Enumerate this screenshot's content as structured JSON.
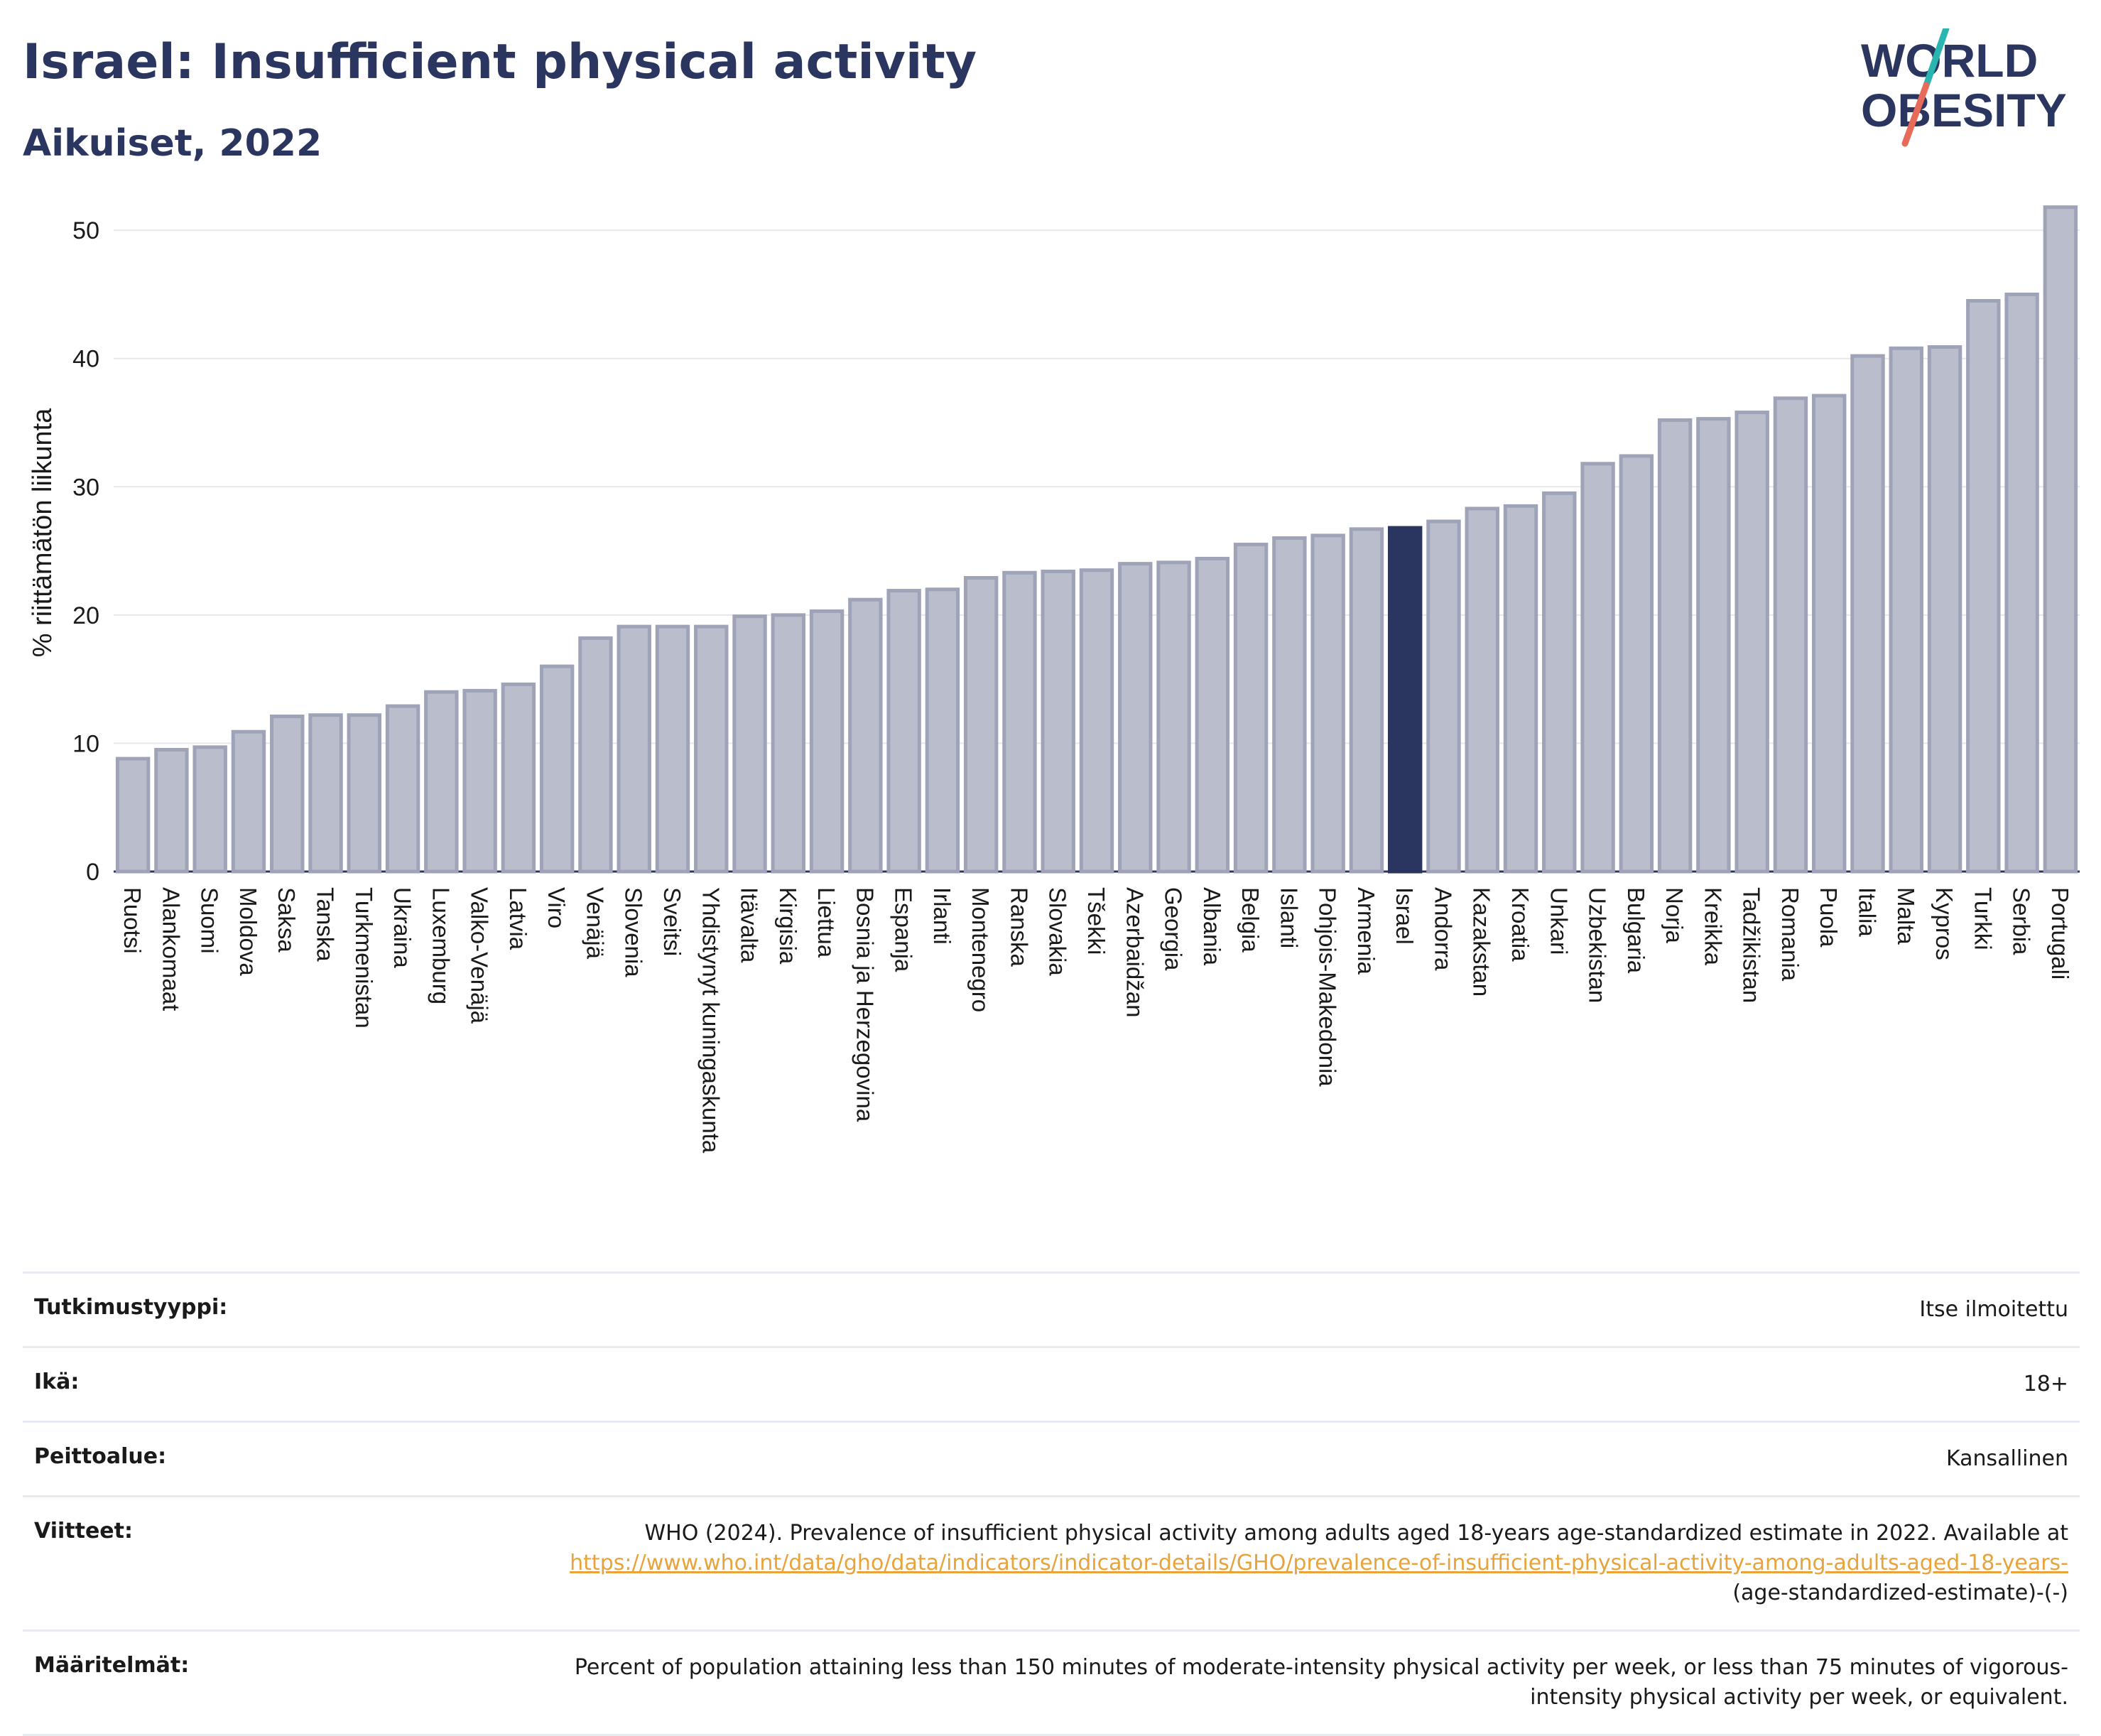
{
  "header": {
    "title": "Israel: Insufficient physical activity",
    "subtitle": "Aikuiset, 2022",
    "logo_line1": "WORLD",
    "logo_line2": "OBESITY"
  },
  "colors": {
    "bar": "#b9bdcc",
    "bar_stroke": "#9ea3b8",
    "highlight": "#2b3660",
    "grid": "#e6e8ee",
    "logo_text": "#2b3660",
    "logo_slash_top": "#2bb5b0",
    "logo_slash_bottom": "#e86b5a",
    "link": "#e8a33a"
  },
  "chart_data": {
    "type": "bar",
    "title": "Israel: Insufficient physical activity",
    "subtitle": "Aikuiset, 2022",
    "ylabel": "% riittämätön liikunta",
    "xlabel": "",
    "ylim": [
      0,
      53
    ],
    "yticks": [
      0,
      10,
      20,
      30,
      40,
      50
    ],
    "grid": true,
    "highlight": "Israel",
    "categories": [
      "Ruotsi",
      "Alankomaat",
      "Suomi",
      "Moldova",
      "Saksa",
      "Tanska",
      "Turkmenistan",
      "Ukraina",
      "Luxemburg",
      "Valko-Venäjä",
      "Latvia",
      "Viro",
      "Venäjä",
      "Slovenia",
      "Sveitsi",
      "Yhdistynyt kuningaskunta",
      "Itävalta",
      "Kirgisia",
      "Liettua",
      "Bosnia ja Herzegovina",
      "Espanja",
      "Irlanti",
      "Montenegro",
      "Ranska",
      "Slovakia",
      "Tšekki",
      "Azerbaidžan",
      "Georgia",
      "Albania",
      "Belgia",
      "Islanti",
      "Pohjois-Makedonia",
      "Armenia",
      "Israel",
      "Andorra",
      "Kazakstan",
      "Kroatia",
      "Unkari",
      "Uzbekistan",
      "Bulgaria",
      "Norja",
      "Kreikka",
      "Tadžikistan",
      "Romania",
      "Puola",
      "Italia",
      "Malta",
      "Kypros",
      "Turkki",
      "Serbia",
      "Portugali"
    ],
    "values": [
      8.8,
      9.5,
      9.7,
      10.9,
      12.1,
      12.2,
      12.2,
      12.9,
      14.0,
      14.1,
      14.6,
      16.0,
      18.2,
      19.1,
      19.1,
      19.1,
      19.9,
      20.0,
      20.3,
      21.2,
      21.9,
      22.0,
      22.9,
      23.3,
      23.4,
      23.5,
      24.0,
      24.1,
      24.4,
      25.5,
      26.0,
      26.2,
      26.7,
      26.8,
      27.3,
      28.3,
      28.5,
      29.5,
      31.8,
      32.4,
      35.2,
      35.3,
      35.8,
      36.9,
      37.1,
      40.2,
      40.8,
      40.9,
      44.5,
      45.0,
      51.8
    ]
  },
  "info": {
    "rows": [
      {
        "label": "Tutkimustyyppi:",
        "value": "Itse ilmoitettu"
      },
      {
        "label": "Ikä:",
        "value": "18+"
      },
      {
        "label": "Peittoalue:",
        "value": "Kansallinen"
      }
    ],
    "references": {
      "label": "Viitteet:",
      "text": "WHO (2024). Prevalence of insufficient physical activity among adults aged 18-years age-standardized estimate in 2022. Available at",
      "link": "https://www.who.int/data/gho/data/indicators/indicator-details/GHO/prevalence-of-insufficient-physical-activity-among-adults-aged-18-years-",
      "suffix": "(age-standardized-estimate)-(-)"
    },
    "definitions": {
      "label": "Määritelmät:",
      "value": "Percent of population attaining less than 150 minutes of moderate-intensity physical activity per week, or less than 75 minutes of vigorous-intensity physical activity per week, or equivalent."
    }
  }
}
